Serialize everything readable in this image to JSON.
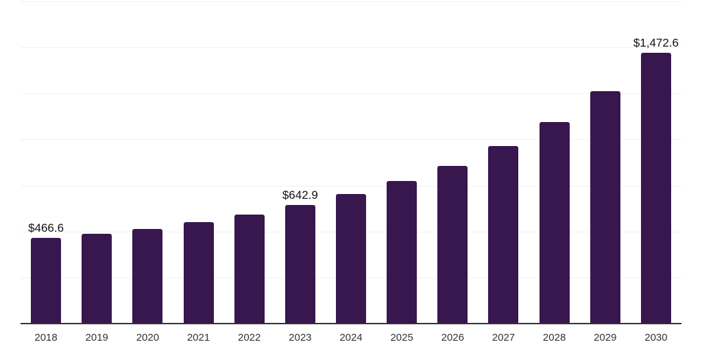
{
  "chart_data": {
    "type": "bar",
    "title": "",
    "xlabel": "",
    "ylabel": "",
    "categories": [
      "2018",
      "2019",
      "2020",
      "2021",
      "2022",
      "2023",
      "2024",
      "2025",
      "2026",
      "2027",
      "2028",
      "2029",
      "2030"
    ],
    "values": [
      466.6,
      489.0,
      513.0,
      550.0,
      591.0,
      642.9,
      703.0,
      774.0,
      858.0,
      964.0,
      1094.0,
      1262.0,
      1472.6
    ],
    "annotations": [
      {
        "category": "2018",
        "text": "$466.6"
      },
      {
        "category": "2023",
        "text": "$642.9"
      },
      {
        "category": "2030",
        "text": "$1,472.6"
      }
    ],
    "ylim": [
      0,
      1750
    ],
    "gridline_step": 250,
    "grid": "horizontal",
    "legend": "none",
    "colors": {
      "bar": "#38164e",
      "axis": "#333333",
      "gridline": "#f1f1f1",
      "value_label": "#111111",
      "tick_label": "#333333"
    }
  }
}
